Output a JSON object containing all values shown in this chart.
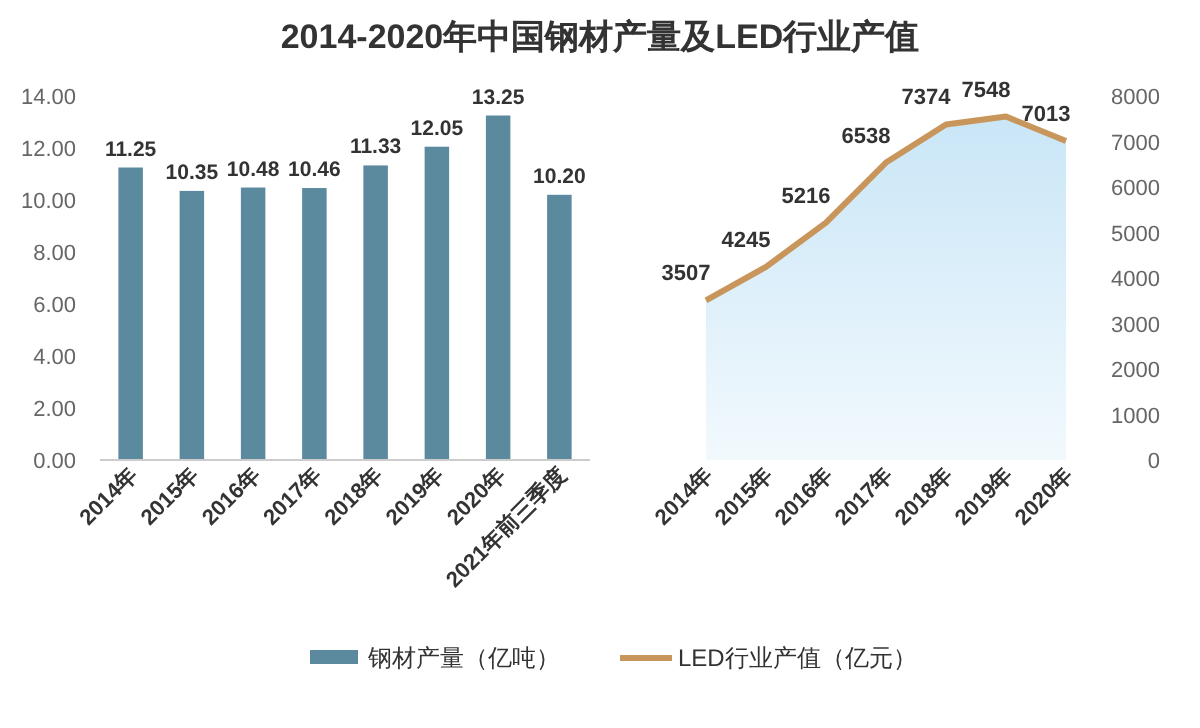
{
  "chart_data": [
    {
      "type": "bar",
      "title": "2014-2020年中国钢材产量及LED行业产值",
      "categories": [
        "2014年",
        "2015年",
        "2016年",
        "2017年",
        "2018年",
        "2019年",
        "2020年",
        "2021年前三季度"
      ],
      "series": [
        {
          "name": "钢材产量（亿吨）",
          "color": "#5b8a9e",
          "values": [
            11.25,
            10.35,
            10.48,
            10.46,
            11.33,
            12.05,
            13.25,
            10.2
          ],
          "value_labels": [
            "11.25",
            "10.35",
            "10.48",
            "10.46",
            "11.33",
            "12.05",
            "13.25",
            "10.20"
          ]
        }
      ],
      "ylim": [
        0,
        14
      ],
      "yticks": [
        {
          "value": 0,
          "label": "0.00"
        },
        {
          "value": 2,
          "label": "2.00"
        },
        {
          "value": 4,
          "label": "4.00"
        },
        {
          "value": 6,
          "label": "6.00"
        },
        {
          "value": 8,
          "label": "8.00"
        },
        {
          "value": 10,
          "label": "10.00"
        },
        {
          "value": 12,
          "label": "12.00"
        },
        {
          "value": 14,
          "label": "14.00"
        }
      ],
      "legend": "bottom"
    },
    {
      "type": "area",
      "categories": [
        "2014年",
        "2015年",
        "2016年",
        "2017年",
        "2018年",
        "2019年",
        "2020年"
      ],
      "series": [
        {
          "name": "LED行业产值（亿元）",
          "color": "#c8955a",
          "values": [
            3507,
            4245,
            5216,
            6538,
            7374,
            7548,
            7013
          ]
        }
      ],
      "ylim": [
        0,
        8000
      ],
      "yticks": [
        0,
        1000,
        2000,
        3000,
        4000,
        5000,
        6000,
        7000,
        8000
      ],
      "data_labels": true,
      "legend": "bottom"
    }
  ]
}
